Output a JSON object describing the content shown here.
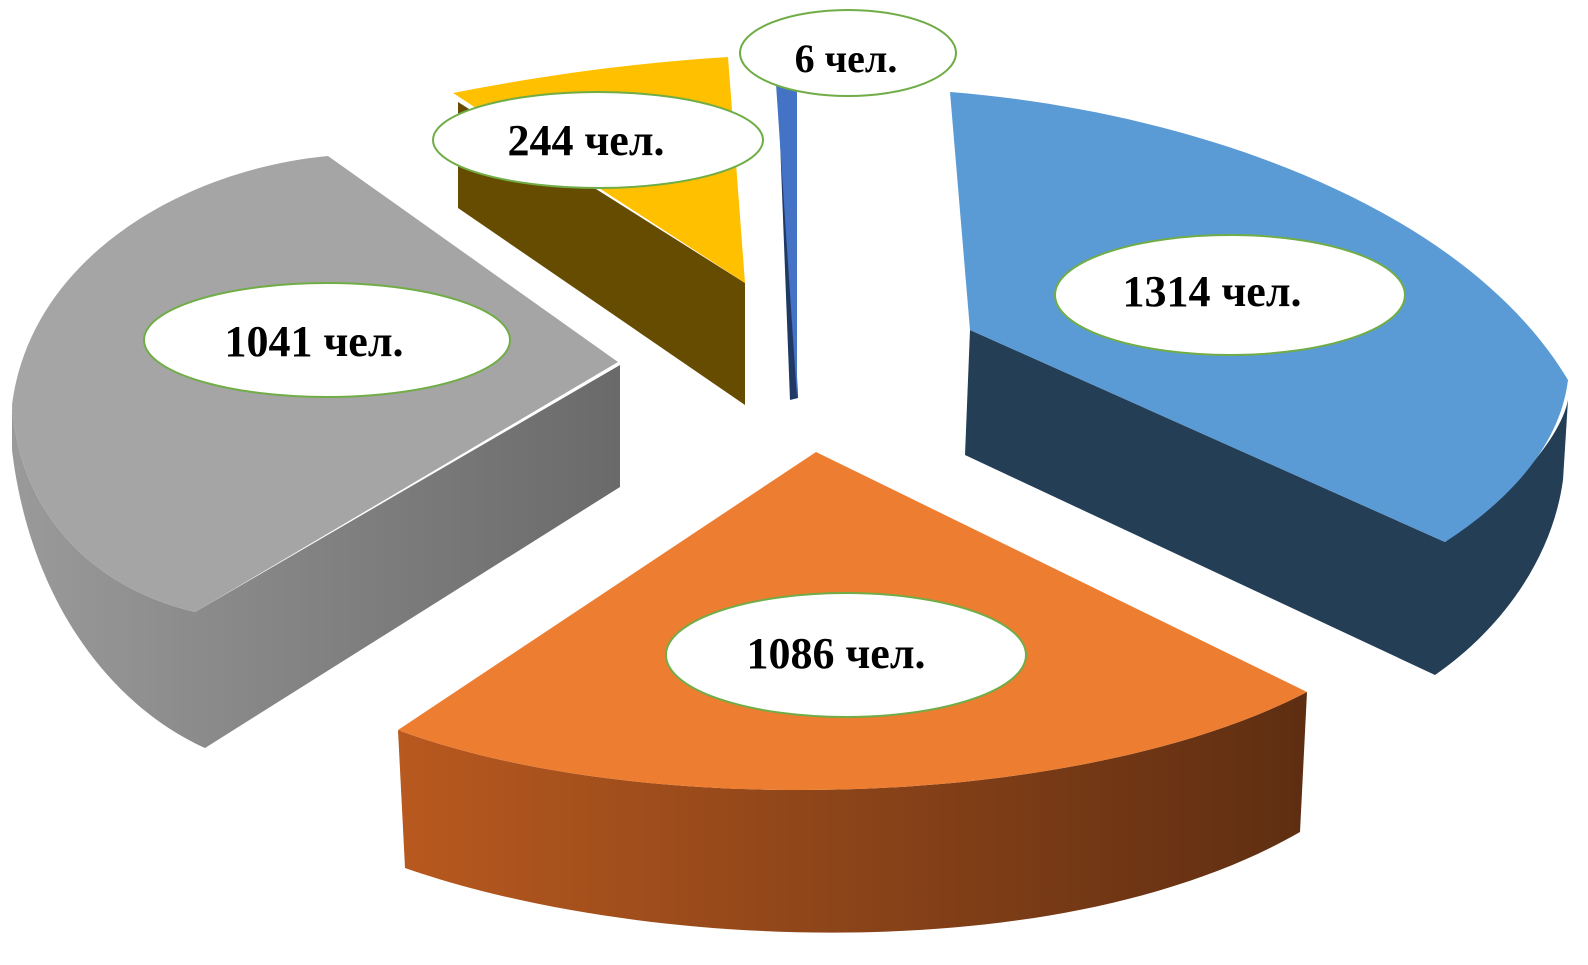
{
  "chart_data": {
    "type": "pie",
    "style": "3d-exploded",
    "title": "",
    "legend": "none",
    "slices": [
      {
        "value": 1314,
        "label": "1314 чел.",
        "color": "#5b9bd5",
        "side_color": "#243e56"
      },
      {
        "value": 1086,
        "label": "1086 чел.",
        "color": "#ed7d31",
        "side_color": "#8a4216"
      },
      {
        "value": 1041,
        "label": "1041 чел.",
        "color": "#a5a5a5",
        "side_color": "#6e6e6e"
      },
      {
        "value": 244,
        "label": "244 чел.",
        "color": "#ffc000",
        "side_color": "#664c00"
      },
      {
        "value": 6,
        "label": "6 чел.",
        "color": "#4472c4",
        "side_color": "#1f3864"
      }
    ]
  }
}
